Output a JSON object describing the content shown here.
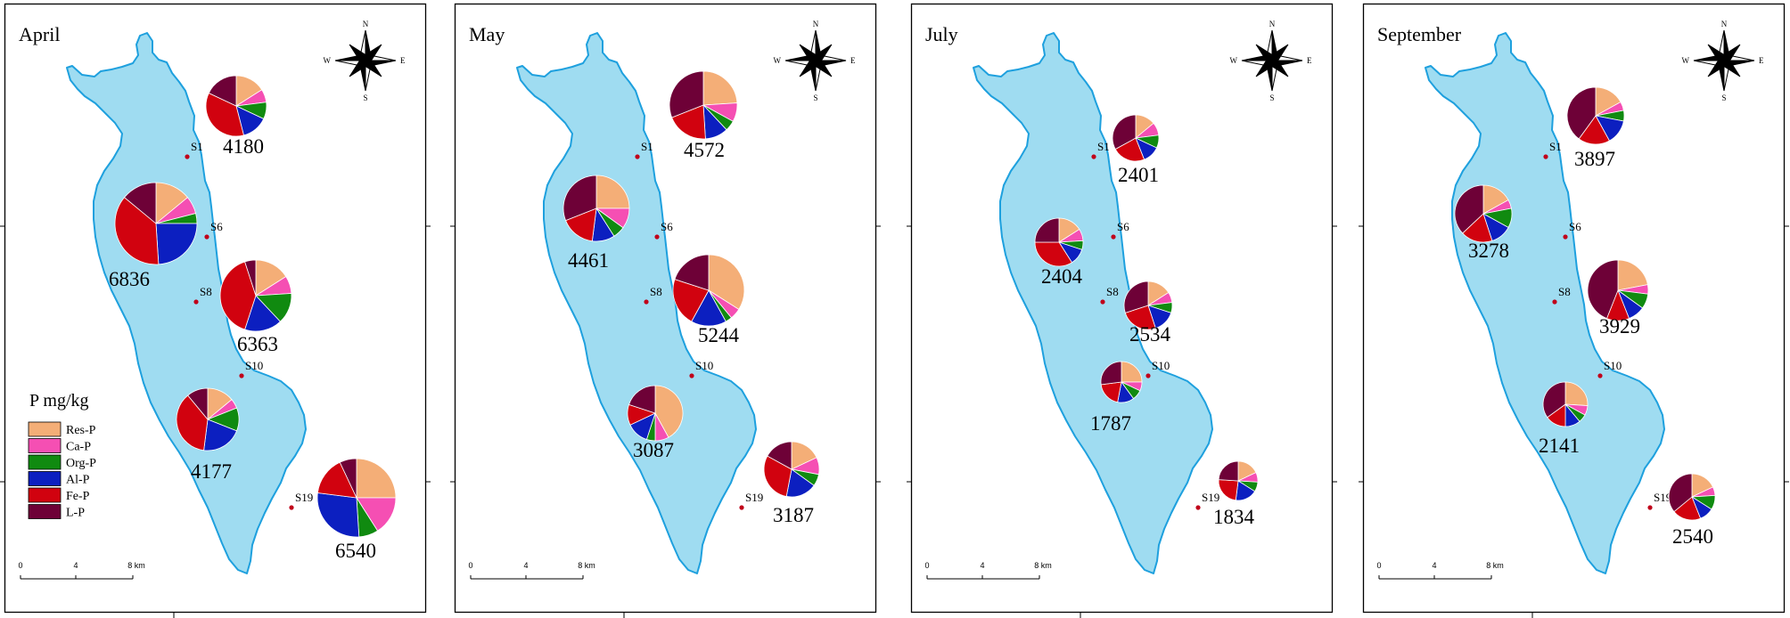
{
  "legend": {
    "title": "P mg/kg",
    "items": [
      {
        "label": "Res-P",
        "color": "#f4ae77"
      },
      {
        "label": "Ca-P",
        "color": "#f54fb3"
      },
      {
        "label": "Org-P",
        "color": "#108a10"
      },
      {
        "label": "Al-P",
        "color": "#0c1fc0"
      },
      {
        "label": "Fe-P",
        "color": "#d1020f"
      },
      {
        "label": "L-P",
        "color": "#6e0137"
      }
    ]
  },
  "compass": {
    "north": "N",
    "south": "S",
    "east": "E",
    "west": "W"
  },
  "scale_bar": {
    "labels": [
      "0",
      "4",
      "8 km"
    ]
  },
  "sites": [
    "S1",
    "S6",
    "S8",
    "S10",
    "S19"
  ],
  "panels": [
    {
      "month": "April",
      "pies": [
        {
          "site": "S1",
          "total": "4180",
          "shares": [
            0.16,
            0.07,
            0.09,
            0.14,
            0.36,
            0.18
          ]
        },
        {
          "site": "S6",
          "total": "6836",
          "shares": [
            0.14,
            0.07,
            0.04,
            0.24,
            0.37,
            0.14
          ]
        },
        {
          "site": "S8",
          "total": "6363",
          "shares": [
            0.16,
            0.08,
            0.14,
            0.17,
            0.4,
            0.05
          ]
        },
        {
          "site": "S10",
          "total": "4177",
          "shares": [
            0.14,
            0.05,
            0.12,
            0.21,
            0.37,
            0.11
          ]
        },
        {
          "site": "S19",
          "total": "6540",
          "shares": [
            0.25,
            0.16,
            0.08,
            0.28,
            0.16,
            0.07
          ]
        }
      ]
    },
    {
      "month": "May",
      "pies": [
        {
          "site": "S1",
          "total": "4572",
          "shares": [
            0.24,
            0.09,
            0.05,
            0.11,
            0.2,
            0.31
          ]
        },
        {
          "site": "S6",
          "total": "4461",
          "shares": [
            0.25,
            0.1,
            0.06,
            0.11,
            0.17,
            0.31
          ]
        },
        {
          "site": "S8",
          "total": "5244",
          "shares": [
            0.34,
            0.05,
            0.03,
            0.16,
            0.22,
            0.2
          ]
        },
        {
          "site": "S10",
          "total": "3087",
          "shares": [
            0.42,
            0.08,
            0.05,
            0.13,
            0.12,
            0.2
          ]
        },
        {
          "site": "S19",
          "total": "3187",
          "shares": [
            0.18,
            0.1,
            0.07,
            0.18,
            0.3,
            0.17
          ]
        }
      ]
    },
    {
      "month": "July",
      "pies": [
        {
          "site": "S1",
          "total": "2401",
          "shares": [
            0.14,
            0.09,
            0.09,
            0.12,
            0.23,
            0.33
          ]
        },
        {
          "site": "S6",
          "total": "2404",
          "shares": [
            0.16,
            0.08,
            0.06,
            0.11,
            0.34,
            0.25
          ]
        },
        {
          "site": "S8",
          "total": "2534",
          "shares": [
            0.16,
            0.07,
            0.07,
            0.15,
            0.25,
            0.3
          ]
        },
        {
          "site": "S10",
          "total": "1787",
          "shares": [
            0.25,
            0.07,
            0.08,
            0.13,
            0.2,
            0.27
          ]
        },
        {
          "site": "S19",
          "total": "1834",
          "shares": [
            0.18,
            0.08,
            0.08,
            0.18,
            0.24,
            0.24
          ]
        }
      ]
    },
    {
      "month": "September",
      "pies": [
        {
          "site": "S1",
          "total": "3897",
          "shares": [
            0.17,
            0.05,
            0.06,
            0.14,
            0.18,
            0.4
          ]
        },
        {
          "site": "S6",
          "total": "3278",
          "shares": [
            0.17,
            0.05,
            0.11,
            0.12,
            0.18,
            0.37
          ]
        },
        {
          "site": "S8",
          "total": "3929",
          "shares": [
            0.22,
            0.05,
            0.08,
            0.09,
            0.12,
            0.44
          ]
        },
        {
          "site": "S10",
          "total": "2141",
          "shares": [
            0.26,
            0.07,
            0.06,
            0.11,
            0.15,
            0.35
          ]
        },
        {
          "site": "S19",
          "total": "2540",
          "shares": [
            0.18,
            0.06,
            0.1,
            0.1,
            0.2,
            0.36
          ]
        }
      ]
    }
  ]
}
